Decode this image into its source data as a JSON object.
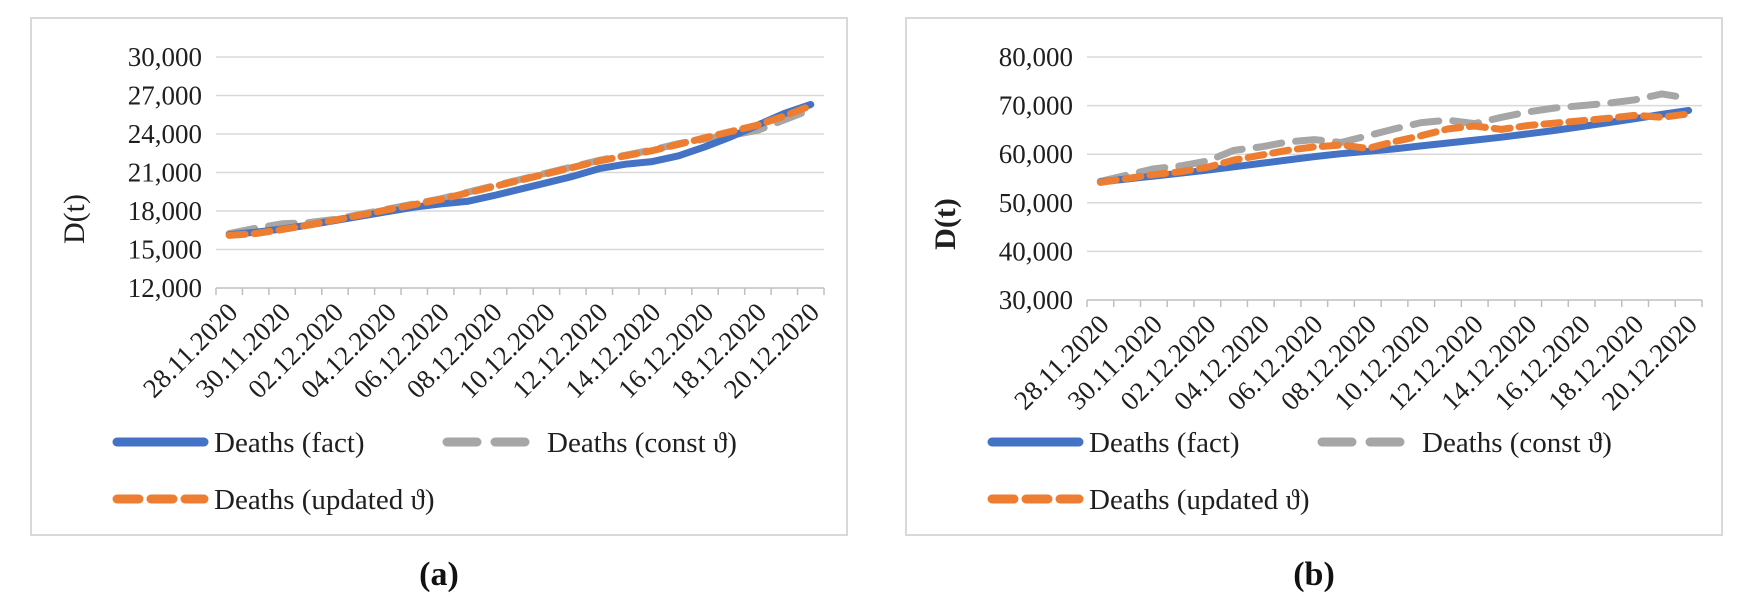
{
  "figure": {
    "captions": [
      "(a)",
      "(b)"
    ]
  },
  "colors": {
    "fact": "#4472C4",
    "const_theta": "#A6A6A6",
    "updated_theta": "#ED7D31",
    "gridline": "#D9D9D9",
    "axis": "#BFBFBF",
    "text": "#1F1F1F"
  },
  "chart_data": [
    {
      "type": "line",
      "panel": "a",
      "ylabel": "D(t)",
      "ylim": [
        12000,
        30000
      ],
      "yticks": [
        12000,
        15000,
        18000,
        21000,
        24000,
        27000,
        30000
      ],
      "ytick_labels": [
        "12,000",
        "15,000",
        "18,000",
        "21,000",
        "24,000",
        "27,000",
        "30,000"
      ],
      "grid": true,
      "legend_position": "bottom",
      "x_dates": [
        "28.11.2020",
        "29.11.2020",
        "30.11.2020",
        "01.12.2020",
        "02.12.2020",
        "03.12.2020",
        "04.12.2020",
        "05.12.2020",
        "06.12.2020",
        "07.12.2020",
        "08.12.2020",
        "09.12.2020",
        "10.12.2020",
        "11.12.2020",
        "12.12.2020",
        "13.12.2020",
        "14.12.2020",
        "15.12.2020",
        "16.12.2020",
        "17.12.2020",
        "18.12.2020",
        "19.12.2020",
        "20.12.2020"
      ],
      "xtick_labels": [
        "28.11.2020",
        "30.11.2020",
        "02.12.2020",
        "04.12.2020",
        "06.12.2020",
        "08.12.2020",
        "10.12.2020",
        "12.12.2020",
        "14.12.2020",
        "16.12.2020",
        "18.12.2020",
        "20.12.2020"
      ],
      "series": [
        {
          "name": "Deaths (fact)",
          "color": "#4472C4",
          "style": "solid",
          "values": [
            16150,
            16350,
            16600,
            16900,
            17250,
            17600,
            17950,
            18300,
            18550,
            18750,
            19200,
            19700,
            20200,
            20700,
            21300,
            21650,
            21850,
            22300,
            23000,
            23800,
            24700,
            25600,
            26300
          ]
        },
        {
          "name": "Deaths (const ϑ)",
          "color": "#A6A6A6",
          "style": "dashed-long",
          "values": [
            16250,
            16650,
            17000,
            17100,
            17350,
            17750,
            18150,
            18550,
            18950,
            19450,
            19950,
            20450,
            20950,
            21450,
            21950,
            22350,
            22750,
            23250,
            23600,
            23900,
            24300,
            25100,
            25900
          ]
        },
        {
          "name": "Deaths (updated ϑ)",
          "color": "#ED7D31",
          "style": "dashed",
          "values": [
            16100,
            16250,
            16550,
            16900,
            17300,
            17700,
            18100,
            18500,
            18900,
            19400,
            19900,
            20400,
            20900,
            21400,
            21900,
            22300,
            22700,
            23200,
            23700,
            24200,
            24700,
            25400,
            26200
          ]
        }
      ]
    },
    {
      "type": "line",
      "panel": "b",
      "ylabel": "D(t)",
      "ylim": [
        30000,
        80000
      ],
      "yticks": [
        30000,
        40000,
        50000,
        60000,
        70000,
        80000
      ],
      "ytick_labels": [
        "30,000",
        "40,000",
        "50,000",
        "60,000",
        "70,000",
        "80,000"
      ],
      "grid": true,
      "legend_position": "bottom",
      "x_dates": [
        "28.11.2020",
        "29.11.2020",
        "30.11.2020",
        "01.12.2020",
        "02.12.2020",
        "03.12.2020",
        "04.12.2020",
        "05.12.2020",
        "06.12.2020",
        "07.12.2020",
        "08.12.2020",
        "09.12.2020",
        "10.12.2020",
        "11.12.2020",
        "12.12.2020",
        "13.12.2020",
        "14.12.2020",
        "15.12.2020",
        "16.12.2020",
        "17.12.2020",
        "18.12.2020",
        "19.12.2020",
        "20.12.2020"
      ],
      "xtick_labels": [
        "28.11.2020",
        "30.11.2020",
        "02.12.2020",
        "04.12.2020",
        "06.12.2020",
        "08.12.2020",
        "10.12.2020",
        "12.12.2020",
        "14.12.2020",
        "16.12.2020",
        "18.12.2020",
        "20.12.2020"
      ],
      "series": [
        {
          "name": "Deaths (fact)",
          "color": "#4472C4",
          "style": "solid",
          "values": [
            54300,
            54900,
            55500,
            56100,
            56700,
            57400,
            58100,
            58800,
            59500,
            60100,
            60600,
            61100,
            61700,
            62300,
            62900,
            63500,
            64200,
            64900,
            65700,
            66500,
            67300,
            68200,
            69000
          ]
        },
        {
          "name": "Deaths (const ϑ)",
          "color": "#A6A6A6",
          "style": "dashed-long",
          "values": [
            54400,
            55700,
            57000,
            57600,
            58600,
            60800,
            61500,
            62500,
            63000,
            62400,
            63800,
            65200,
            66500,
            67000,
            66300,
            67600,
            68700,
            69500,
            70000,
            70500,
            71200,
            72400,
            71500
          ]
        },
        {
          "name": "Deaths (updated ϑ)",
          "color": "#ED7D31",
          "style": "dashed",
          "values": [
            54200,
            55000,
            55800,
            56400,
            57300,
            58800,
            59800,
            60800,
            61500,
            61900,
            61200,
            62600,
            63800,
            65200,
            65800,
            65100,
            65900,
            66400,
            66900,
            67400,
            68000,
            67600,
            68300
          ]
        }
      ]
    }
  ]
}
